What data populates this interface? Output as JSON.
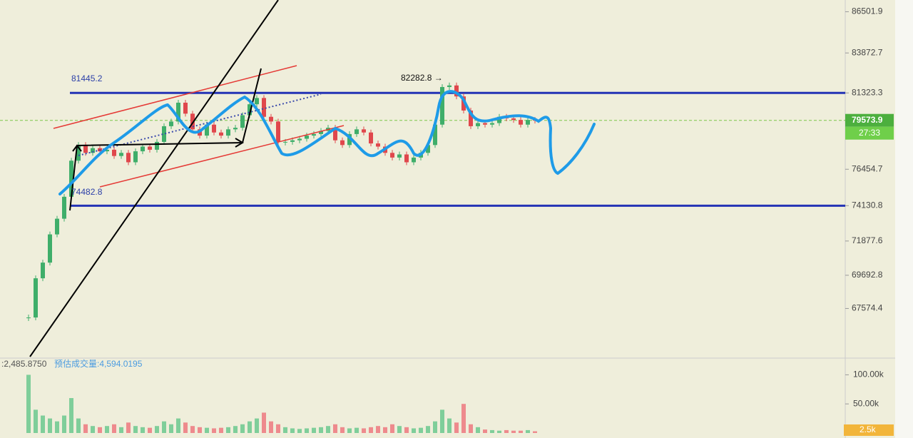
{
  "price_axis": {
    "ylim": [
      64500,
      87250
    ],
    "ticks": [
      86501.9,
      83872.7,
      81323.3,
      76454.7,
      74130.8,
      71877.6,
      69692.8,
      67574.4
    ],
    "current_price": 79573.9,
    "countdown": "27:33"
  },
  "levels": [
    81323.3,
    74130.8
  ],
  "annotations": {
    "high": "82282.8 →",
    "level_top": "81445.2",
    "level_bottom": "74482.8"
  },
  "closes": [
    67000,
    69500,
    70500,
    72300,
    73300,
    74700,
    77000,
    78000,
    77500,
    77800,
    77600,
    77700,
    77300,
    77500,
    76900,
    77600,
    77900,
    77700,
    78200,
    79200,
    79500,
    80700,
    80000,
    79000,
    78600,
    79300,
    78800,
    78600,
    79000,
    79100,
    79900,
    80600,
    81000,
    79800,
    79500,
    78200,
    78200,
    78300,
    78400,
    78600,
    78700,
    78900,
    79100,
    78300,
    78000,
    78700,
    79000,
    78800,
    78100,
    77900,
    77500,
    77200,
    77400,
    76900,
    77200,
    77500,
    78000,
    79300,
    81700,
    81800,
    81100,
    80200,
    79200,
    79400,
    79300,
    79400,
    79800,
    79700,
    79600,
    79300,
    79600,
    79573.9
  ],
  "volume": {
    "left_label": ":2,485.8750",
    "estimate": "预估成交量:4,594.0195",
    "ylim": [
      0,
      125000
    ],
    "ticks": [
      {
        "value": 100000,
        "label": "100.00k"
      },
      {
        "value": 50000,
        "label": "50.00k"
      }
    ],
    "current": "2.5k",
    "values": [
      100000,
      40000,
      30000,
      25000,
      20000,
      30000,
      60000,
      25000,
      15000,
      12000,
      10000,
      12000,
      15000,
      10000,
      18000,
      12000,
      10000,
      9000,
      12000,
      20000,
      15000,
      25000,
      18000,
      12000,
      10000,
      9000,
      8000,
      9000,
      10000,
      12000,
      15000,
      20000,
      25000,
      35000,
      20000,
      15000,
      10000,
      8000,
      7000,
      8000,
      9000,
      10000,
      12000,
      15000,
      10000,
      8000,
      9000,
      8000,
      10000,
      12000,
      10000,
      15000,
      12000,
      10000,
      8000,
      9000,
      12000,
      20000,
      40000,
      25000,
      18000,
      50000,
      15000,
      10000,
      6000,
      5000,
      4000,
      5000,
      4000,
      4000,
      5000,
      3000
    ]
  }
}
